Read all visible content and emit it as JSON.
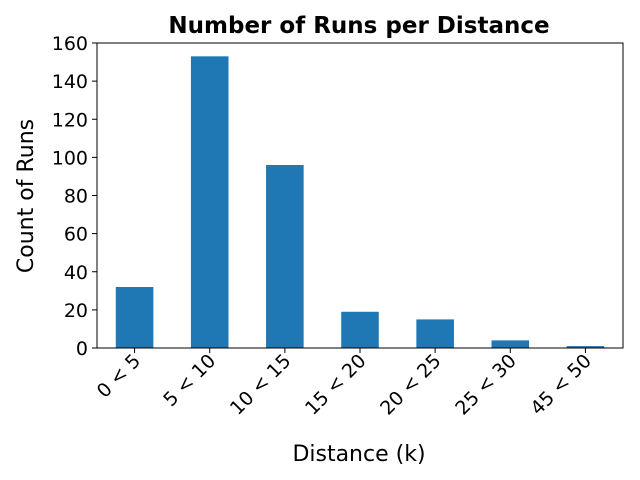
{
  "chart_data": {
    "type": "bar",
    "title": "Number of Runs per Distance",
    "xlabel": "Distance (k)",
    "ylabel": "Count of Runs",
    "categories": [
      "0 < 5",
      "5 < 10",
      "10 < 15",
      "15 < 20",
      "20 < 25",
      "25 < 30",
      "45 < 50"
    ],
    "values": [
      32,
      153,
      96,
      19,
      15,
      4,
      1
    ],
    "ylim": [
      0,
      160
    ],
    "yticks": [
      0,
      20,
      40,
      60,
      80,
      100,
      120,
      140,
      160
    ],
    "bar_color": "#1f77b4",
    "grid": false,
    "legend": "none",
    "xtick_rotation": 45
  }
}
